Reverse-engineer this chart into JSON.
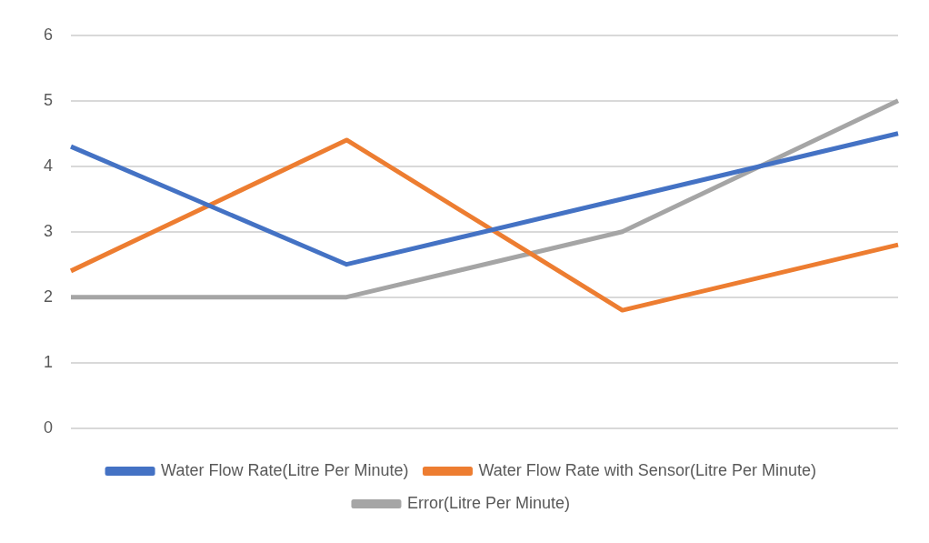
{
  "chart_data": {
    "type": "line",
    "categories": [
      null,
      null,
      null,
      null
    ],
    "series": [
      {
        "name": "Water Flow Rate(Litre Per Minute)",
        "color": "#4472c4",
        "values": [
          4.3,
          2.5,
          3.5,
          4.5
        ]
      },
      {
        "name": "Water Flow Rate with Sensor(Litre Per Minute)",
        "color": "#ed7d31",
        "values": [
          2.4,
          4.4,
          1.8,
          2.8
        ]
      },
      {
        "name": "Error(Litre Per Minute)",
        "color": "#a5a5a5",
        "values": [
          2.0,
          2.0,
          3.0,
          5.0
        ]
      }
    ],
    "ylim": [
      0,
      6
    ],
    "yticks": [
      0,
      1,
      2,
      3,
      4,
      5,
      6
    ],
    "grid": "y",
    "legend": "bottom",
    "marker": "none",
    "line_style": "solid"
  }
}
